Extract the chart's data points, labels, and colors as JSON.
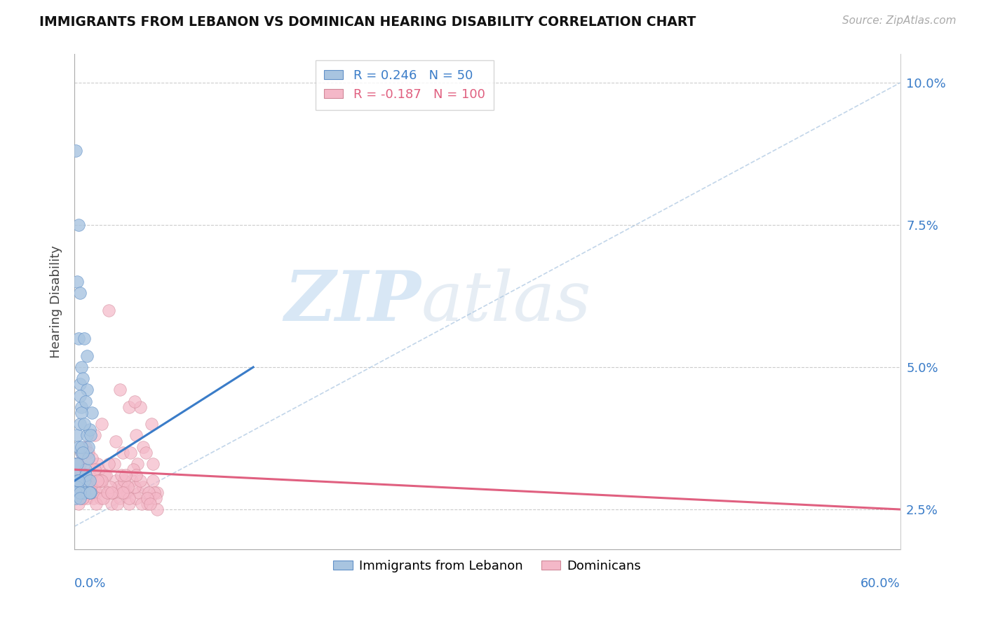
{
  "title": "IMMIGRANTS FROM LEBANON VS DOMINICAN HEARING DISABILITY CORRELATION CHART",
  "source": "Source: ZipAtlas.com",
  "ylabel": "Hearing Disability",
  "legend_label1": "Immigrants from Lebanon",
  "legend_label2": "Dominicans",
  "R1": 0.246,
  "N1": 50,
  "R2": -0.187,
  "N2": 100,
  "color1": "#a8c4e0",
  "color2": "#f4b8c8",
  "line_color1": "#3a7cc8",
  "line_color2": "#e06080",
  "watermark_zip": "ZIP",
  "watermark_atlas": "atlas",
  "blue_points": [
    [
      0.001,
      0.033
    ],
    [
      0.002,
      0.038
    ],
    [
      0.002,
      0.031
    ],
    [
      0.003,
      0.028
    ],
    [
      0.003,
      0.055
    ],
    [
      0.004,
      0.047
    ],
    [
      0.004,
      0.04
    ],
    [
      0.005,
      0.035
    ],
    [
      0.005,
      0.043
    ],
    [
      0.006,
      0.029
    ],
    [
      0.006,
      0.028
    ],
    [
      0.007,
      0.03
    ],
    [
      0.007,
      0.028
    ],
    [
      0.008,
      0.032
    ],
    [
      0.008,
      0.031
    ],
    [
      0.009,
      0.038
    ],
    [
      0.009,
      0.046
    ],
    [
      0.01,
      0.034
    ],
    [
      0.01,
      0.036
    ],
    [
      0.011,
      0.03
    ],
    [
      0.011,
      0.039
    ],
    [
      0.012,
      0.028
    ],
    [
      0.012,
      0.038
    ],
    [
      0.013,
      0.042
    ],
    [
      0.001,
      0.088
    ],
    [
      0.002,
      0.065
    ],
    [
      0.003,
      0.075
    ],
    [
      0.004,
      0.063
    ],
    [
      0.002,
      0.033
    ],
    [
      0.003,
      0.036
    ],
    [
      0.004,
      0.045
    ],
    [
      0.005,
      0.036
    ],
    [
      0.005,
      0.042
    ],
    [
      0.006,
      0.035
    ],
    [
      0.007,
      0.04
    ],
    [
      0.001,
      0.029
    ],
    [
      0.002,
      0.03
    ],
    [
      0.002,
      0.029
    ],
    [
      0.003,
      0.03
    ],
    [
      0.003,
      0.028
    ],
    [
      0.001,
      0.028
    ],
    [
      0.001,
      0.027
    ],
    [
      0.004,
      0.028
    ],
    [
      0.004,
      0.027
    ],
    [
      0.009,
      0.052
    ],
    [
      0.007,
      0.055
    ],
    [
      0.005,
      0.05
    ],
    [
      0.006,
      0.048
    ],
    [
      0.008,
      0.044
    ],
    [
      0.011,
      0.028
    ]
  ],
  "pink_points": [
    [
      0.001,
      0.033
    ],
    [
      0.002,
      0.03
    ],
    [
      0.003,
      0.031
    ],
    [
      0.004,
      0.029
    ],
    [
      0.005,
      0.035
    ],
    [
      0.006,
      0.027
    ],
    [
      0.007,
      0.032
    ],
    [
      0.008,
      0.031
    ],
    [
      0.009,
      0.03
    ],
    [
      0.01,
      0.029
    ],
    [
      0.011,
      0.031
    ],
    [
      0.012,
      0.028
    ],
    [
      0.013,
      0.03
    ],
    [
      0.014,
      0.027
    ],
    [
      0.015,
      0.029
    ],
    [
      0.016,
      0.028
    ],
    [
      0.017,
      0.033
    ],
    [
      0.018,
      0.03
    ],
    [
      0.019,
      0.027
    ],
    [
      0.02,
      0.029
    ],
    [
      0.022,
      0.031
    ],
    [
      0.025,
      0.028
    ],
    [
      0.027,
      0.026
    ],
    [
      0.03,
      0.03
    ],
    [
      0.033,
      0.027
    ],
    [
      0.035,
      0.029
    ],
    [
      0.038,
      0.028
    ],
    [
      0.04,
      0.026
    ],
    [
      0.042,
      0.03
    ],
    [
      0.045,
      0.027
    ],
    [
      0.047,
      0.028
    ],
    [
      0.05,
      0.029
    ],
    [
      0.053,
      0.026
    ],
    [
      0.055,
      0.027
    ],
    [
      0.057,
      0.03
    ],
    [
      0.06,
      0.028
    ],
    [
      0.008,
      0.036
    ],
    [
      0.01,
      0.035
    ],
    [
      0.015,
      0.038
    ],
    [
      0.02,
      0.04
    ],
    [
      0.025,
      0.06
    ],
    [
      0.03,
      0.037
    ],
    [
      0.035,
      0.035
    ],
    [
      0.04,
      0.043
    ],
    [
      0.045,
      0.038
    ],
    [
      0.05,
      0.036
    ],
    [
      0.003,
      0.032
    ],
    [
      0.005,
      0.028
    ],
    [
      0.007,
      0.03
    ],
    [
      0.009,
      0.027
    ],
    [
      0.012,
      0.029
    ],
    [
      0.018,
      0.032
    ],
    [
      0.023,
      0.031
    ],
    [
      0.028,
      0.028
    ],
    [
      0.032,
      0.029
    ],
    [
      0.036,
      0.03
    ],
    [
      0.041,
      0.035
    ],
    [
      0.046,
      0.033
    ],
    [
      0.048,
      0.043
    ],
    [
      0.052,
      0.035
    ],
    [
      0.056,
      0.04
    ],
    [
      0.058,
      0.028
    ],
    [
      0.003,
      0.026
    ],
    [
      0.006,
      0.027
    ],
    [
      0.011,
      0.028
    ],
    [
      0.016,
      0.026
    ],
    [
      0.021,
      0.027
    ],
    [
      0.026,
      0.029
    ],
    [
      0.031,
      0.026
    ],
    [
      0.036,
      0.028
    ],
    [
      0.04,
      0.027
    ],
    [
      0.044,
      0.029
    ],
    [
      0.049,
      0.026
    ],
    [
      0.054,
      0.028
    ],
    [
      0.059,
      0.027
    ],
    [
      0.004,
      0.033
    ],
    [
      0.008,
      0.031
    ],
    [
      0.013,
      0.034
    ],
    [
      0.019,
      0.03
    ],
    [
      0.024,
      0.028
    ],
    [
      0.029,
      0.033
    ],
    [
      0.034,
      0.031
    ],
    [
      0.039,
      0.029
    ],
    [
      0.043,
      0.032
    ],
    [
      0.048,
      0.03
    ],
    [
      0.053,
      0.027
    ],
    [
      0.057,
      0.033
    ],
    [
      0.06,
      0.025
    ],
    [
      0.033,
      0.046
    ],
    [
      0.044,
      0.044
    ],
    [
      0.02,
      0.03
    ],
    [
      0.015,
      0.032
    ],
    [
      0.025,
      0.033
    ],
    [
      0.035,
      0.028
    ],
    [
      0.045,
      0.031
    ],
    [
      0.055,
      0.026
    ],
    [
      0.002,
      0.029
    ],
    [
      0.017,
      0.03
    ],
    [
      0.027,
      0.028
    ],
    [
      0.037,
      0.031
    ]
  ],
  "xmin": 0.0,
  "xmax": 0.6,
  "ymin": 0.018,
  "ymax": 0.105,
  "yticks": [
    0.025,
    0.05,
    0.075,
    0.1
  ],
  "ytick_labels": [
    "2.5%",
    "5.0%",
    "7.5%",
    "10.0%"
  ],
  "grid_color": "#cccccc",
  "bg_color": "#ffffff",
  "blue_line_x": [
    0.0,
    0.13
  ],
  "blue_line_y": [
    0.03,
    0.05
  ],
  "pink_line_x": [
    0.0,
    0.6
  ],
  "pink_line_y": [
    0.032,
    0.025
  ]
}
